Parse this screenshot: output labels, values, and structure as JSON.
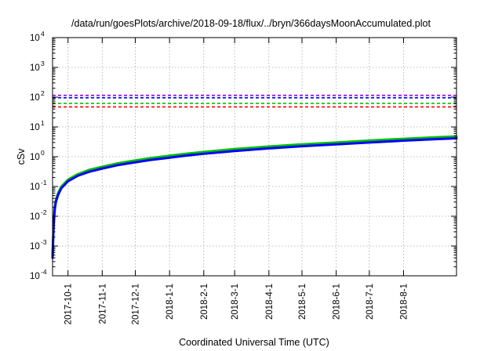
{
  "chart_data": {
    "type": "line",
    "title": "/data/run/goesPlots/archive/2018-09-18/flux/../bryn/366daysMoonAccumulated.plot",
    "xlabel": "Coordinated Universal Time (UTC)",
    "ylabel": "cSv",
    "yscale": "log",
    "ylim": [
      0.0001,
      10000
    ],
    "xlim": [
      "2017-09-17",
      "2018-09-18"
    ],
    "grid": true,
    "x_ticks": [
      "2017-10-1",
      "2017-11-1",
      "2017-12-1",
      "2018-1-1",
      "2018-2-1",
      "2018-3-1",
      "2018-4-1",
      "2018-5-1",
      "2018-6-1",
      "2018-7-1",
      "2018-8-1"
    ],
    "y_ticks": [
      {
        "value": 0.0001,
        "base": "10",
        "exp": "-4"
      },
      {
        "value": 0.001,
        "base": "10",
        "exp": "-3"
      },
      {
        "value": 0.01,
        "base": "10",
        "exp": "-2"
      },
      {
        "value": 0.1,
        "base": "10",
        "exp": "-1"
      },
      {
        "value": 1,
        "base": "10",
        "exp": "0"
      },
      {
        "value": 10,
        "base": "10",
        "exp": "1"
      },
      {
        "value": 100,
        "base": "10",
        "exp": "2"
      },
      {
        "value": 1000,
        "base": "10",
        "exp": "3"
      },
      {
        "value": 10000,
        "base": "10",
        "exp": "4"
      }
    ],
    "reference_lines": [
      {
        "value": 115,
        "color": "#9400d3",
        "style": "dashed"
      },
      {
        "value": 95,
        "color": "#0000ff",
        "style": "dashed"
      },
      {
        "value": 62,
        "color": "#00c000",
        "style": "dashed"
      },
      {
        "value": 47,
        "color": "#ff0000",
        "style": "dashed"
      }
    ],
    "series": [
      {
        "color": "#00c000",
        "x": [
          "2017-09-17",
          "2017-09-18",
          "2017-09-19",
          "2017-09-20",
          "2017-09-22",
          "2017-09-25",
          "2017-10-01",
          "2017-10-10",
          "2017-10-20",
          "2017-11-01",
          "2017-11-15",
          "2017-12-01",
          "2017-12-15",
          "2018-01-01",
          "2018-01-15",
          "2018-02-01",
          "2018-03-01",
          "2018-04-01",
          "2018-05-01",
          "2018-06-01",
          "2018-07-01",
          "2018-08-01",
          "2018-09-01",
          "2018-09-18"
        ],
        "y": [
          0.0005,
          0.006,
          0.02,
          0.035,
          0.06,
          0.1,
          0.17,
          0.26,
          0.36,
          0.46,
          0.6,
          0.75,
          0.9,
          1.08,
          1.25,
          1.45,
          1.8,
          2.2,
          2.6,
          3.0,
          3.5,
          4.0,
          4.5,
          4.8
        ]
      },
      {
        "color": "#0000ff",
        "x": [
          "2017-09-17",
          "2017-09-18",
          "2017-09-19",
          "2017-09-20",
          "2017-09-22",
          "2017-09-25",
          "2017-10-01",
          "2017-10-10",
          "2017-10-20",
          "2017-11-01",
          "2017-11-15",
          "2017-12-01",
          "2017-12-15",
          "2018-01-01",
          "2018-01-15",
          "2018-02-01",
          "2018-03-01",
          "2018-04-01",
          "2018-05-01",
          "2018-06-01",
          "2018-07-01",
          "2018-08-01",
          "2018-09-01",
          "2018-09-18"
        ],
        "y": [
          0.0004,
          0.005,
          0.017,
          0.03,
          0.052,
          0.088,
          0.15,
          0.23,
          0.31,
          0.4,
          0.52,
          0.65,
          0.78,
          0.93,
          1.08,
          1.25,
          1.55,
          1.9,
          2.25,
          2.6,
          3.0,
          3.45,
          3.9,
          4.15
        ]
      }
    ]
  }
}
